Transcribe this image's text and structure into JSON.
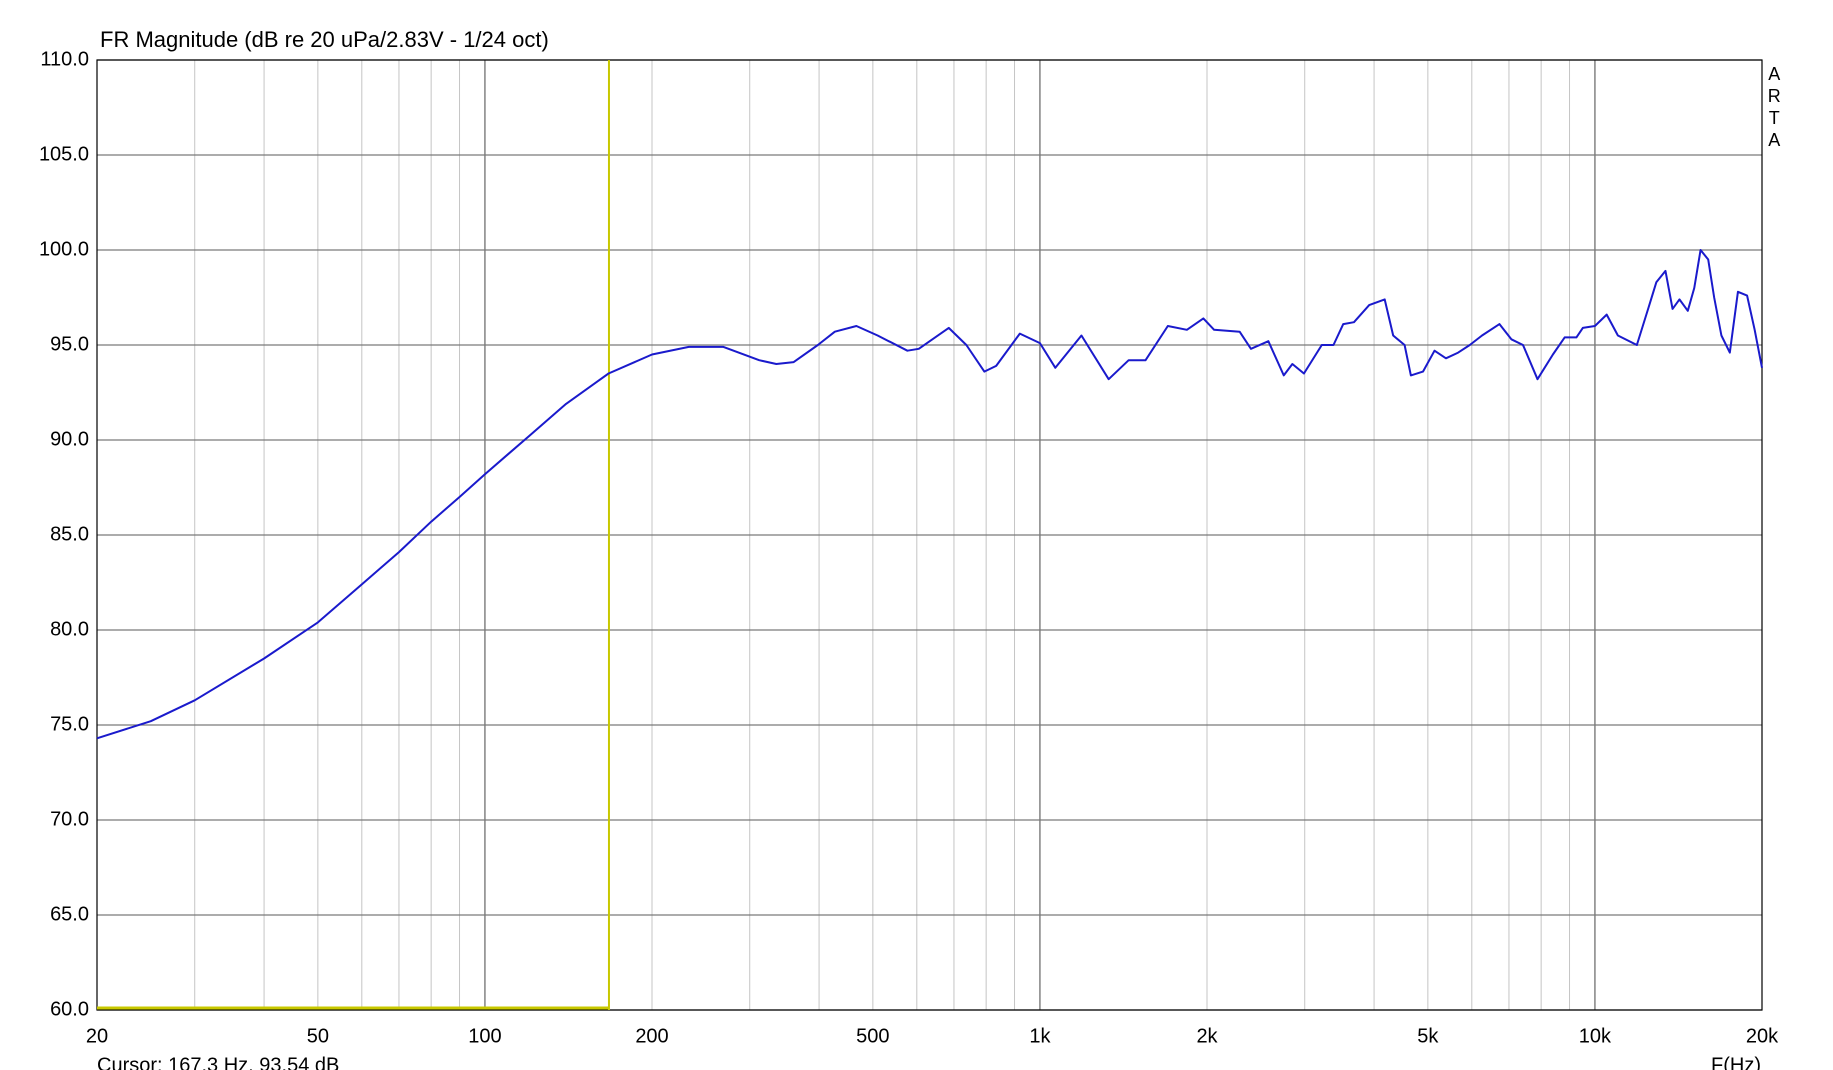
{
  "chart_data": {
    "type": "line",
    "title": "FR Magnitude (dB re 20 uPa/2.83V - 1/24 oct)",
    "x_label": "F(Hz)",
    "watermark": "ARTA",
    "xscale": "log",
    "grid": true,
    "color": "#1a1acc",
    "xlim": [
      20,
      20000
    ],
    "ylim": [
      60,
      110
    ],
    "xticks": [
      20,
      50,
      100,
      200,
      500,
      {
        "value": 1000,
        "label": "1k"
      },
      {
        "value": 2000,
        "label": "2k"
      },
      {
        "value": 5000,
        "label": "5k"
      },
      {
        "value": 10000,
        "label": "10k"
      },
      {
        "value": 20000,
        "label": "20k"
      }
    ],
    "x_minor_grid": [
      30,
      40,
      60,
      70,
      80,
      90,
      300,
      400,
      600,
      700,
      800,
      900,
      3000,
      4000,
      6000,
      7000,
      8000,
      9000
    ],
    "yticks": [
      {
        "value": 60,
        "label": "60.0"
      },
      {
        "value": 65,
        "label": "65.0"
      },
      {
        "value": 70,
        "label": "70.0"
      },
      {
        "value": 75,
        "label": "75.0"
      },
      {
        "value": 80,
        "label": "80.0"
      },
      {
        "value": 85,
        "label": "85.0"
      },
      {
        "value": 90,
        "label": "90.0"
      },
      {
        "value": 95,
        "label": "95.0"
      },
      {
        "value": 100,
        "label": "100.0"
      },
      {
        "value": 105,
        "label": "105.0"
      },
      {
        "value": 110,
        "label": "110.0"
      }
    ],
    "cursor": {
      "label": "Cursor: 167.3 Hz, 93.54 dB",
      "x": 167.3,
      "color": "#c8c800"
    },
    "x": [
      20,
      25,
      30,
      40,
      50,
      60,
      70,
      80,
      90,
      100,
      120,
      140,
      167,
      200,
      233,
      269,
      312,
      335,
      360,
      398,
      427,
      467,
      510,
      577,
      605,
      685,
      737,
      794,
      834,
      920,
      1000,
      1066,
      1188,
      1330,
      1445,
      1550,
      1700,
      1840,
      1970,
      2060,
      2290,
      2400,
      2580,
      2750,
      2850,
      2990,
      3220,
      3380,
      3520,
      3680,
      3920,
      4180,
      4330,
      4540,
      4660,
      4900,
      5140,
      5390,
      5670,
      5950,
      6260,
      6730,
      7070,
      7420,
      7880,
      8400,
      8820,
      9260,
      9510,
      10000,
      10500,
      11000,
      11900,
      12500,
      12900,
      13400,
      13800,
      14200,
      14700,
      15100,
      15500,
      16000,
      16400,
      16900,
      17500,
      18100,
      18800,
      19400,
      20000
    ],
    "values": [
      74.3,
      75.2,
      76.3,
      78.5,
      80.4,
      82.4,
      84.1,
      85.7,
      87.0,
      88.2,
      90.2,
      91.9,
      93.5,
      94.5,
      94.9,
      94.9,
      94.2,
      94.0,
      94.1,
      95.0,
      95.7,
      96.0,
      95.5,
      94.7,
      94.8,
      95.9,
      95.0,
      93.6,
      93.9,
      95.6,
      95.1,
      93.8,
      95.5,
      93.2,
      94.2,
      94.2,
      96.0,
      95.8,
      96.4,
      95.8,
      95.7,
      94.8,
      95.2,
      93.4,
      94.0,
      93.5,
      95.0,
      95.0,
      96.1,
      96.2,
      97.1,
      97.4,
      95.5,
      95.0,
      93.4,
      93.6,
      94.7,
      94.3,
      94.6,
      95.0,
      95.5,
      96.1,
      95.3,
      95.0,
      93.2,
      94.5,
      95.4,
      95.4,
      95.9,
      96.0,
      96.6,
      95.5,
      95.0,
      97.0,
      98.3,
      98.9,
      96.9,
      97.4,
      96.8,
      98.0,
      100.0,
      99.5,
      97.5,
      95.5,
      94.6,
      97.8,
      97.6,
      95.8,
      93.8
    ]
  }
}
